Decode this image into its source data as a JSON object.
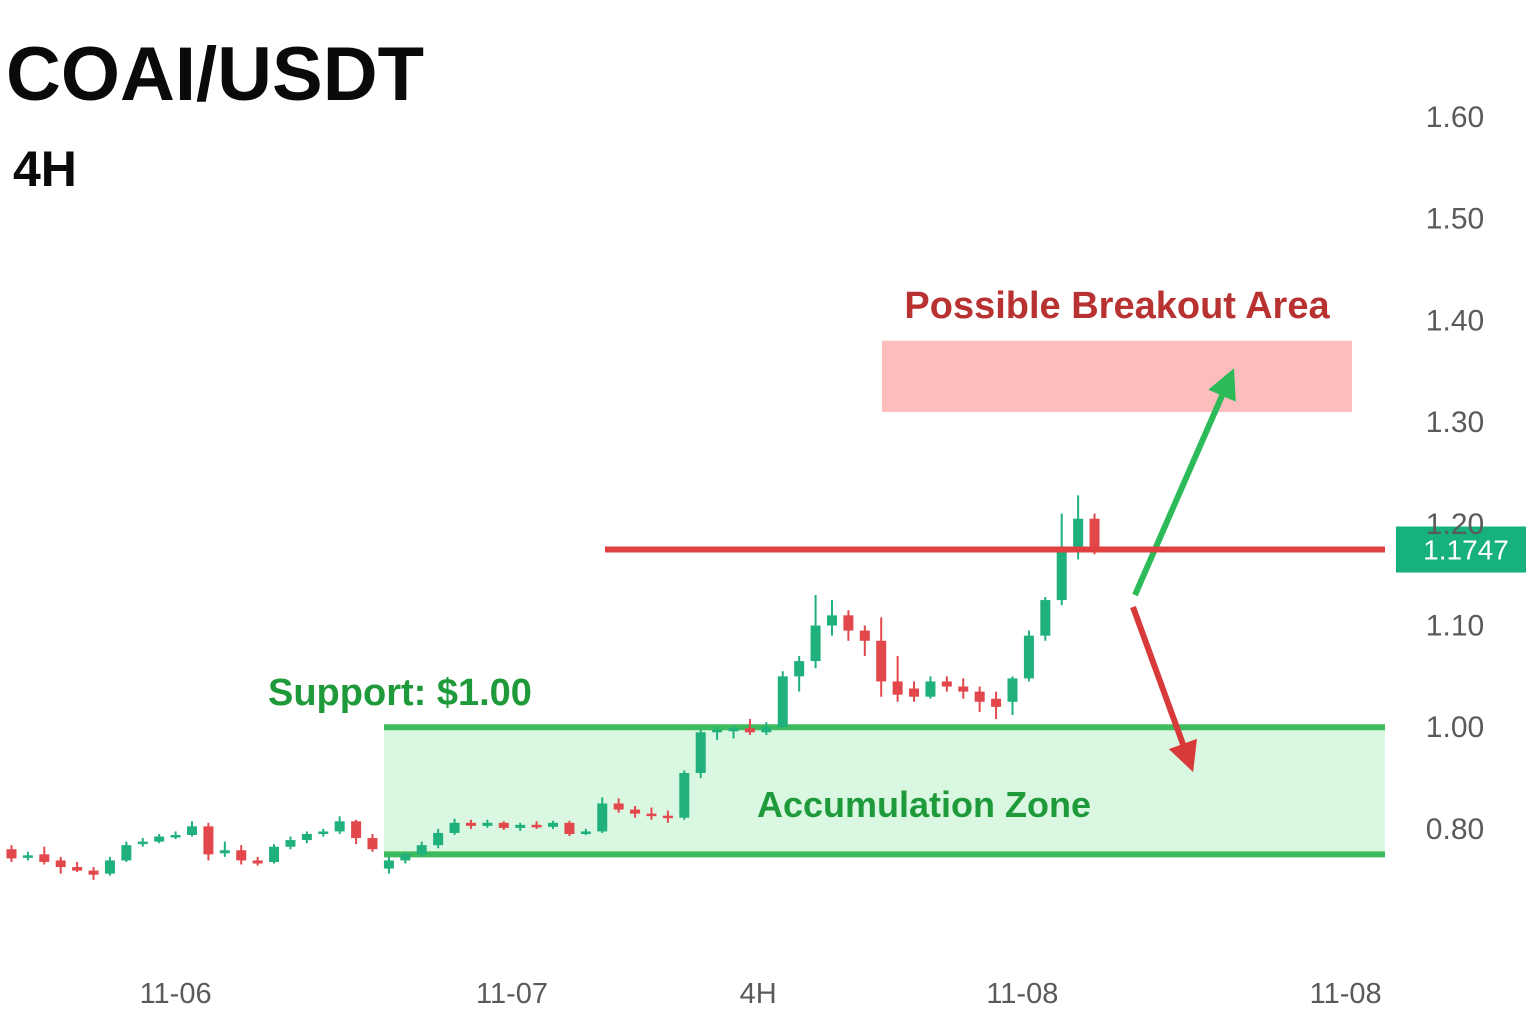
{
  "chart_data": {
    "type": "candlestick",
    "title": "COAI/USDT",
    "subtitle": "4H",
    "up_color": "#1fb07c",
    "down_color": "#e2474b",
    "xlim": [
      -0.7,
      83.7
    ],
    "xticks": [
      {
        "value": 10.0,
        "label": "11-06"
      },
      {
        "value": 30.5,
        "label": "11-07"
      },
      {
        "value": 45.5,
        "label": "4H"
      },
      {
        "value": 61.6,
        "label": "11-08"
      },
      {
        "value": 81.3,
        "label": "11-08"
      }
    ],
    "ylim": [
      0.6,
      1.7
    ],
    "yticks": [
      {
        "value": 1.6,
        "label": "1.60"
      },
      {
        "value": 1.5,
        "label": "1.50"
      },
      {
        "value": 1.4,
        "label": "1.40"
      },
      {
        "value": 1.3,
        "label": "1.30"
      },
      {
        "value": 1.2,
        "label": "1.20"
      },
      {
        "value": 1.1,
        "label": "1.10"
      },
      {
        "value": 1.0,
        "label": "1.00"
      },
      {
        "value": 0.8,
        "label": "0.80"
      }
    ],
    "open": [
      0.76,
      0.745,
      0.75,
      0.738,
      0.725,
      0.718,
      0.712,
      0.738,
      0.77,
      0.775,
      0.785,
      0.788,
      0.805,
      0.752,
      0.758,
      0.738,
      0.735,
      0.765,
      0.778,
      0.79,
      0.795,
      0.815,
      0.782,
      0.722,
      0.738,
      0.75,
      0.768,
      0.792,
      0.812,
      0.806,
      0.812,
      0.802,
      0.808,
      0.804,
      0.812,
      0.79,
      0.795,
      0.85,
      0.838,
      0.83,
      0.826,
      0.822,
      0.91,
      0.99,
      0.992,
      0.998,
      0.99,
      1.0,
      1.05,
      1.065,
      1.1,
      1.11,
      1.095,
      1.085,
      1.045,
      1.038,
      1.03,
      1.045,
      1.04,
      1.035,
      1.028,
      1.025,
      1.048,
      1.09,
      1.125,
      1.172,
      1.205
    ],
    "high": [
      0.768,
      0.755,
      0.765,
      0.745,
      0.735,
      0.725,
      0.745,
      0.775,
      0.782,
      0.79,
      0.795,
      0.815,
      0.812,
      0.775,
      0.768,
      0.745,
      0.77,
      0.785,
      0.795,
      0.8,
      0.825,
      0.818,
      0.79,
      0.745,
      0.755,
      0.775,
      0.8,
      0.82,
      0.818,
      0.818,
      0.815,
      0.812,
      0.815,
      0.816,
      0.816,
      0.8,
      0.862,
      0.86,
      0.845,
      0.842,
      0.836,
      0.915,
      0.995,
      1.0,
      1.002,
      1.008,
      1.005,
      1.055,
      1.07,
      1.13,
      1.125,
      1.115,
      1.1,
      1.108,
      1.07,
      1.045,
      1.05,
      1.05,
      1.048,
      1.04,
      1.035,
      1.05,
      1.095,
      1.128,
      1.21,
      1.228,
      1.21
    ],
    "low": [
      0.735,
      0.738,
      0.73,
      0.712,
      0.715,
      0.7,
      0.708,
      0.735,
      0.765,
      0.772,
      0.78,
      0.785,
      0.738,
      0.745,
      0.73,
      0.728,
      0.732,
      0.76,
      0.772,
      0.785,
      0.79,
      0.77,
      0.755,
      0.712,
      0.732,
      0.745,
      0.762,
      0.788,
      0.8,
      0.802,
      0.798,
      0.796,
      0.8,
      0.8,
      0.786,
      0.788,
      0.792,
      0.832,
      0.822,
      0.818,
      0.812,
      0.818,
      0.9,
      0.975,
      0.978,
      0.985,
      0.985,
      0.998,
      1.035,
      1.058,
      1.09,
      1.085,
      1.07,
      1.03,
      1.025,
      1.025,
      1.028,
      1.035,
      1.028,
      1.015,
      1.008,
      1.012,
      1.045,
      1.085,
      1.12,
      1.165,
      1.17
    ],
    "close": [
      0.742,
      0.748,
      0.735,
      0.725,
      0.718,
      0.71,
      0.738,
      0.768,
      0.775,
      0.785,
      0.788,
      0.805,
      0.75,
      0.758,
      0.738,
      0.732,
      0.765,
      0.778,
      0.79,
      0.795,
      0.815,
      0.782,
      0.76,
      0.738,
      0.75,
      0.768,
      0.792,
      0.812,
      0.806,
      0.812,
      0.802,
      0.808,
      0.804,
      0.812,
      0.79,
      0.795,
      0.85,
      0.838,
      0.83,
      0.826,
      0.822,
      0.91,
      0.99,
      0.995,
      0.998,
      0.99,
      1.0,
      1.05,
      1.065,
      1.1,
      1.11,
      1.095,
      1.085,
      1.045,
      1.032,
      1.03,
      1.045,
      1.04,
      1.035,
      1.025,
      1.02,
      1.048,
      1.09,
      1.125,
      1.172,
      1.205,
      1.175
    ],
    "last_price": 1.1747,
    "support_zone": [
      0.75,
      1.0
    ],
    "breakout_zone": [
      1.31,
      1.38
    ],
    "annotations": {
      "breakout": "Possible Breakout Area",
      "support": "Support: $1.00",
      "zone": "Accumulation Zone"
    }
  }
}
